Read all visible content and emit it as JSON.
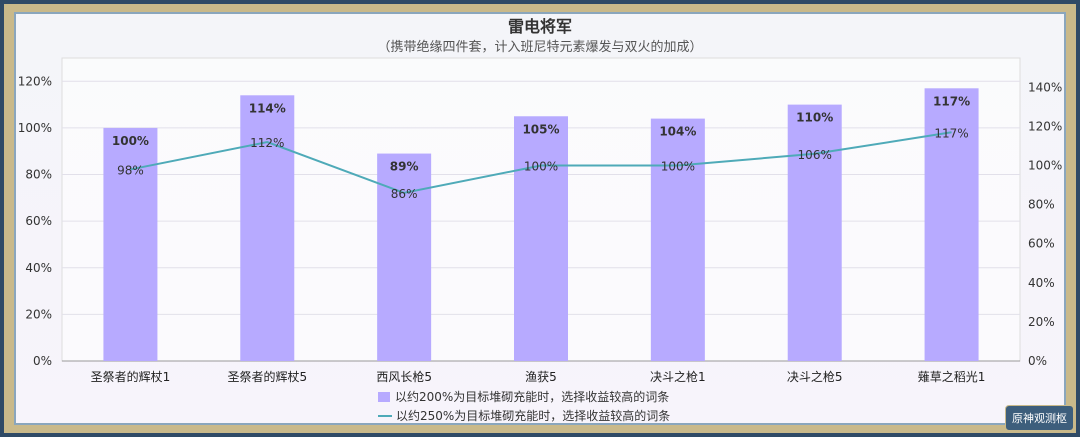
{
  "chart_data": {
    "type": "bar+line",
    "title": "雷电将军",
    "subtitle": "（携带绝缘四件套，计入班尼特元素爆发与双火的加成）",
    "categories": [
      "圣祭者的辉杖1",
      "圣祭者的辉杖5",
      "西风长枪5",
      "渔获5",
      "决斗之枪1",
      "决斗之枪5",
      "薙草之稻光1"
    ],
    "series": [
      {
        "name": "以约200%为目标堆砌充能时，选择收益较高的词条",
        "type": "bar",
        "axis": "left",
        "values": [
          100,
          114,
          89,
          105,
          104,
          110,
          117
        ],
        "color": "#b7aaff"
      },
      {
        "name": "以约250%为目标堆砌充能时，选择收益较高的词条",
        "type": "line",
        "axis": "right",
        "values": [
          98,
          112,
          86,
          100,
          100,
          106,
          117
        ],
        "color": "#4eaab8"
      }
    ],
    "left_axis": {
      "ylim": [
        0,
        130
      ],
      "ticks": [
        "0%",
        "20%",
        "40%",
        "60%",
        "80%",
        "100%",
        "120%"
      ]
    },
    "right_axis": {
      "ylim": [
        0,
        155
      ],
      "ticks": [
        "0%",
        "20%",
        "40%",
        "60%",
        "80%",
        "100%",
        "120%",
        "140%"
      ]
    },
    "grid": true,
    "legend": "bottom"
  },
  "watermark": "原神观测枢"
}
